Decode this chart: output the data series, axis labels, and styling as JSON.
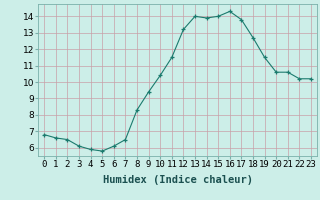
{
  "x": [
    0,
    1,
    2,
    3,
    4,
    5,
    6,
    7,
    8,
    9,
    10,
    11,
    12,
    13,
    14,
    15,
    16,
    17,
    18,
    19,
    20,
    21,
    22,
    23
  ],
  "y": [
    6.8,
    6.6,
    6.5,
    6.1,
    5.9,
    5.8,
    6.1,
    6.5,
    8.3,
    9.4,
    10.4,
    11.5,
    13.2,
    14.0,
    13.9,
    14.0,
    14.3,
    13.8,
    12.7,
    11.5,
    10.6,
    10.6,
    10.2,
    10.2
  ],
  "xlabel": "Humidex (Indice chaleur)",
  "xlim": [
    -0.5,
    23.5
  ],
  "ylim": [
    5.5,
    14.75
  ],
  "yticks": [
    6,
    7,
    8,
    9,
    10,
    11,
    12,
    13,
    14
  ],
  "xtick_labels": [
    "0",
    "1",
    "2",
    "3",
    "4",
    "5",
    "6",
    "7",
    "8",
    "9",
    "10",
    "11",
    "12",
    "13",
    "14",
    "15",
    "16",
    "17",
    "18",
    "19",
    "20",
    "21",
    "22",
    "23"
  ],
  "line_color": "#1b7b6e",
  "bg_color": "#cceee8",
  "grid_color": "#c8a0a8",
  "tick_fontsize": 6.5,
  "label_fontsize": 7.5
}
